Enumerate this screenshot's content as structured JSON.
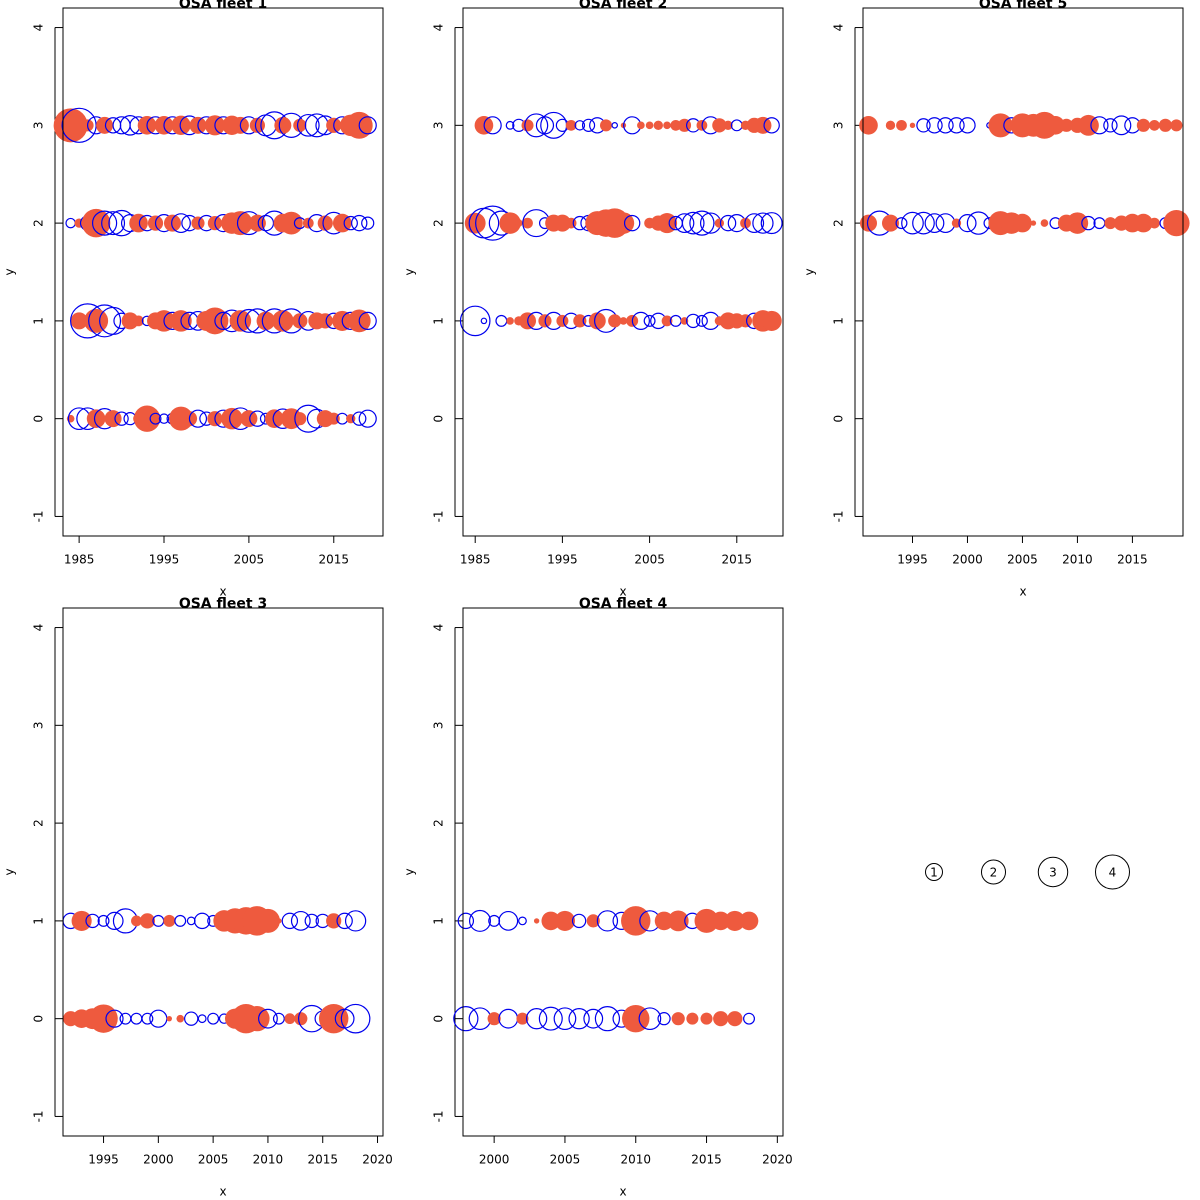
{
  "chart_data": [
    {
      "type": "bubble",
      "title": "OSA fleet 1",
      "xlabel": "x",
      "ylabel": "y",
      "xlim": [
        1983.1,
        2020.8
      ],
      "xticks": [
        1985,
        1995,
        2005,
        2015
      ],
      "ylim": [
        -1.2,
        4.2
      ],
      "yticks": [
        -1,
        0,
        1,
        2,
        3,
        4
      ],
      "pos_color": "#ee5a3e",
      "neg_color": "#0000ee",
      "years": [
        1984,
        1985,
        1986,
        1987,
        1988,
        1989,
        1990,
        1991,
        1992,
        1993,
        1994,
        1995,
        1996,
        1997,
        1998,
        1999,
        2000,
        2001,
        2002,
        2003,
        2004,
        2005,
        2006,
        2007,
        2008,
        2009,
        2010,
        2011,
        2012,
        2013,
        2014,
        2015,
        2016,
        2017,
        2018,
        2019
      ],
      "rows": [
        {
          "y": 3,
          "sizes": [
            4,
            -4,
            0.5,
            -1,
            1,
            -0.8,
            -1,
            -1.3,
            -1,
            1.2,
            -1,
            1.2,
            -1,
            1.3,
            -1.2,
            1,
            -1,
            1.4,
            -1,
            1.3,
            1,
            -1,
            0.8,
            -1.5,
            -2.5,
            1,
            -2,
            0.6,
            -1.6,
            -1.8,
            -1.2,
            0.8,
            -1,
            1.6,
            2.5,
            -1
          ]
        },
        {
          "y": 2,
          "sizes": [
            -0.3,
            0.3,
            -0.7,
            2.8,
            -2,
            -1.8,
            -2.2,
            -1,
            1.2,
            -0.8,
            0.8,
            -1,
            1,
            -1.2,
            -0.8,
            0.6,
            -0.8,
            0.7,
            -1,
            1.6,
            2,
            -1.8,
            1,
            -0.8,
            -2,
            1.2,
            1.8,
            -0.4,
            0.4,
            -1,
            0.8,
            -1.6,
            1.2,
            -0.6,
            -0.8,
            -0.5
          ]
        },
        {
          "y": 1,
          "sizes": [
            null,
            1,
            -4,
            2,
            -3.5,
            -2.5,
            -0.8,
            1,
            0.4,
            -0.3,
            1,
            1.6,
            -1,
            1.6,
            -1,
            -1.2,
            1.4,
            2.5,
            -1,
            -1.6,
            1.6,
            -1.8,
            -2,
            1.2,
            -2,
            1.6,
            -2,
            0.8,
            -1.2,
            1,
            0.8,
            -0.8,
            1.4,
            -1,
            1.8,
            -1
          ]
        },
        {
          "y": 0,
          "sizes": [
            0.2,
            -1.6,
            -1.6,
            1.2,
            -1.4,
            1,
            -0.6,
            -0.5,
            0.4,
            2.4,
            -0.4,
            -0.3,
            -0.4,
            2,
            0.8,
            -1,
            -0.6,
            0.8,
            -1,
            1.6,
            -1.6,
            1,
            -0.8,
            -0.4,
            1.2,
            -1.3,
            1.5,
            0.6,
            -2.5,
            -1.2,
            1,
            0.5,
            -0.4,
            0.3,
            -0.6,
            -1
          ]
        }
      ]
    },
    {
      "type": "bubble",
      "title": "OSA fleet 2",
      "xlabel": "x",
      "ylabel": "y",
      "xlim": [
        1983.6,
        2020.3
      ],
      "xticks": [
        1985,
        1995,
        2005,
        2015
      ],
      "ylim": [
        -1.2,
        4.2
      ],
      "yticks": [
        -1,
        0,
        1,
        2,
        3,
        4
      ],
      "pos_color": "#ee5a3e",
      "neg_color": "#0000ee",
      "years": [
        1985,
        1986,
        1987,
        1988,
        1989,
        1990,
        1991,
        1992,
        1993,
        1994,
        1995,
        1996,
        1997,
        1998,
        1999,
        2000,
        2001,
        2002,
        2003,
        2004,
        2005,
        2006,
        2007,
        2008,
        2009,
        2010,
        2011,
        2012,
        2013,
        2014,
        2015,
        2016,
        2017,
        2018,
        2019
      ],
      "rows": [
        {
          "y": 3,
          "sizes": [
            null,
            1.2,
            -1,
            null,
            -0.2,
            -0.5,
            0.5,
            -1.8,
            -1,
            -2.3,
            -0.5,
            0.4,
            -0.3,
            -0.5,
            -0.8,
            0.5,
            -0.1,
            0.1,
            -1,
            0.2,
            0.2,
            0.3,
            0.2,
            0.4,
            0.6,
            -0.6,
            0.4,
            -1,
            0.7,
            0.3,
            -0.4,
            0.3,
            0.8,
            1,
            -0.8
          ]
        },
        {
          "y": 2,
          "sizes": [
            1.5,
            -3,
            -4,
            -2,
            1.6,
            0.2,
            0.4,
            -2.5,
            -0.4,
            1,
            1,
            0.4,
            -0.6,
            -0.8,
            2,
            2.6,
            3,
            1.6,
            -0.8,
            null,
            0.4,
            0.8,
            1.4,
            -0.6,
            -1.2,
            -1.6,
            -2,
            -1.4,
            0.3,
            -0.8,
            -1,
            0.4,
            -1.2,
            -1.4,
            -1.5
          ]
        },
        {
          "y": 1,
          "sizes": [
            -3,
            -0.1,
            null,
            -0.4,
            0.2,
            0.3,
            1,
            -1,
            0.6,
            -1,
            0.5,
            -0.8,
            0.6,
            -0.4,
            1,
            -1.8,
            0.6,
            0.2,
            0.5,
            -1,
            -0.4,
            -0.8,
            0.4,
            -0.4,
            0.2,
            -0.6,
            -0.4,
            -1,
            0.3,
            1,
            0.8,
            0.6,
            -0.8,
            1.6,
            1.4
          ]
        }
      ]
    },
    {
      "type": "bubble",
      "title": "OSA fleet 5",
      "xlabel": "x",
      "ylabel": "y",
      "xlim": [
        1990.5,
        2019.6
      ],
      "xticks": [
        1995,
        2000,
        2005,
        2010,
        2015
      ],
      "ylim": [
        -1.2,
        4.2
      ],
      "yticks": [
        -1,
        0,
        1,
        2,
        3,
        4
      ],
      "pos_color": "#ee5a3e",
      "neg_color": "#0000ee",
      "years": [
        1991,
        1992,
        1993,
        1994,
        1995,
        1996,
        1997,
        1998,
        1999,
        2000,
        2001,
        2002,
        2003,
        2004,
        2005,
        2006,
        2007,
        2008,
        2009,
        2010,
        2011,
        2012,
        2013,
        2014,
        2015,
        2016,
        2017,
        2018,
        2019
      ],
      "rows": [
        {
          "y": 3,
          "sizes": [
            1.2,
            null,
            0.3,
            0.4,
            0.1,
            -0.6,
            -0.8,
            -0.8,
            -0.8,
            -0.8,
            null,
            -0.1,
            2,
            -0.8,
            2,
            1.8,
            2.5,
            1.2,
            0.6,
            0.8,
            1.5,
            -1,
            -0.6,
            -1.2,
            -0.8,
            0.6,
            0.4,
            0.6,
            0.5
          ]
        },
        {
          "y": 2,
          "sizes": [
            1,
            -2,
            1,
            -0.4,
            -1.6,
            -1.6,
            -1.2,
            -1.2,
            0.3,
            -1,
            -1.7,
            -0.4,
            2,
            1.6,
            1.2,
            0.1,
            0.2,
            -0.4,
            1,
            1.6,
            -0.6,
            -0.4,
            0.5,
            0.8,
            1.2,
            1.2,
            0.4,
            -0.4,
            2.4
          ]
        }
      ]
    },
    {
      "type": "bubble",
      "title": "OSA fleet 3",
      "xlabel": "x",
      "ylabel": "y",
      "xlim": [
        1991.3,
        2020.5
      ],
      "xticks": [
        1995,
        2000,
        2005,
        2010,
        2015,
        2020
      ],
      "ylim": [
        -1.2,
        4.2
      ],
      "yticks": [
        -1,
        0,
        1,
        2,
        3,
        4
      ],
      "pos_color": "#ee5a3e",
      "neg_color": "#0000ee",
      "years": [
        1992,
        1993,
        1994,
        1995,
        1996,
        1997,
        1998,
        1999,
        2000,
        2001,
        2002,
        2003,
        2004,
        2005,
        2006,
        2007,
        2008,
        2009,
        2010,
        2011,
        2012,
        2013,
        2014,
        2015,
        2016,
        2017,
        2018
      ],
      "rows": [
        {
          "y": 1,
          "sizes": [
            -0.8,
            1.4,
            -0.6,
            -0.4,
            -1,
            -2,
            0.4,
            0.8,
            -0.4,
            0.5,
            -0.4,
            -0.2,
            -0.8,
            -0.4,
            1.6,
            2.2,
            2.6,
            3,
            2,
            0.1,
            -0.8,
            -1.2,
            -0.6,
            -0.6,
            0.8,
            -0.8,
            -1.4
          ]
        },
        {
          "y": 0,
          "sizes": [
            0.8,
            1.2,
            1.5,
            2.8,
            -1,
            -0.4,
            -0.4,
            -0.4,
            -1,
            0.1,
            0.2,
            -0.6,
            -0.2,
            -0.4,
            -0.3,
            1.4,
            3,
            2.2,
            -1.2,
            -0.4,
            0.4,
            0.6,
            -2.4,
            -0.8,
            3,
            -1.2,
            -2.8
          ]
        }
      ]
    },
    {
      "type": "bubble",
      "title": "OSA fleet 4",
      "xlabel": "x",
      "ylabel": "y",
      "xlim": [
        1997.8,
        2020.4
      ],
      "xticks": [
        2000,
        2005,
        2010,
        2015,
        2020
      ],
      "ylim": [
        -1.2,
        4.2
      ],
      "yticks": [
        -1,
        0,
        1,
        2,
        3,
        4
      ],
      "pos_color": "#ee5a3e",
      "neg_color": "#0000ee",
      "years": [
        1998,
        1999,
        2000,
        2001,
        2002,
        2003,
        2004,
        2005,
        2006,
        2007,
        2008,
        2009,
        2010,
        2011,
        2012,
        2013,
        2014,
        2015,
        2016,
        2017,
        2018
      ],
      "rows": [
        {
          "y": 1,
          "sizes": [
            -0.8,
            -1.5,
            -0.4,
            -1.2,
            -0.2,
            0.1,
            1.2,
            1.4,
            -0.6,
            0.6,
            -1.4,
            -1,
            3,
            -1.4,
            1.2,
            1.5,
            -0.8,
            2,
            1.2,
            1.4,
            1.2
          ]
        },
        {
          "y": 0,
          "sizes": [
            -2,
            -1.6,
            0.6,
            -1.2,
            0.5,
            -1.4,
            -1.8,
            -1.6,
            -1.4,
            -1.2,
            -2,
            -1,
            2.6,
            -1.6,
            -0.5,
            0.6,
            0.5,
            0.5,
            0.8,
            0.8,
            -0.4
          ]
        }
      ]
    }
  ],
  "legend": {
    "sizes": [
      1,
      2,
      3,
      4
    ]
  }
}
